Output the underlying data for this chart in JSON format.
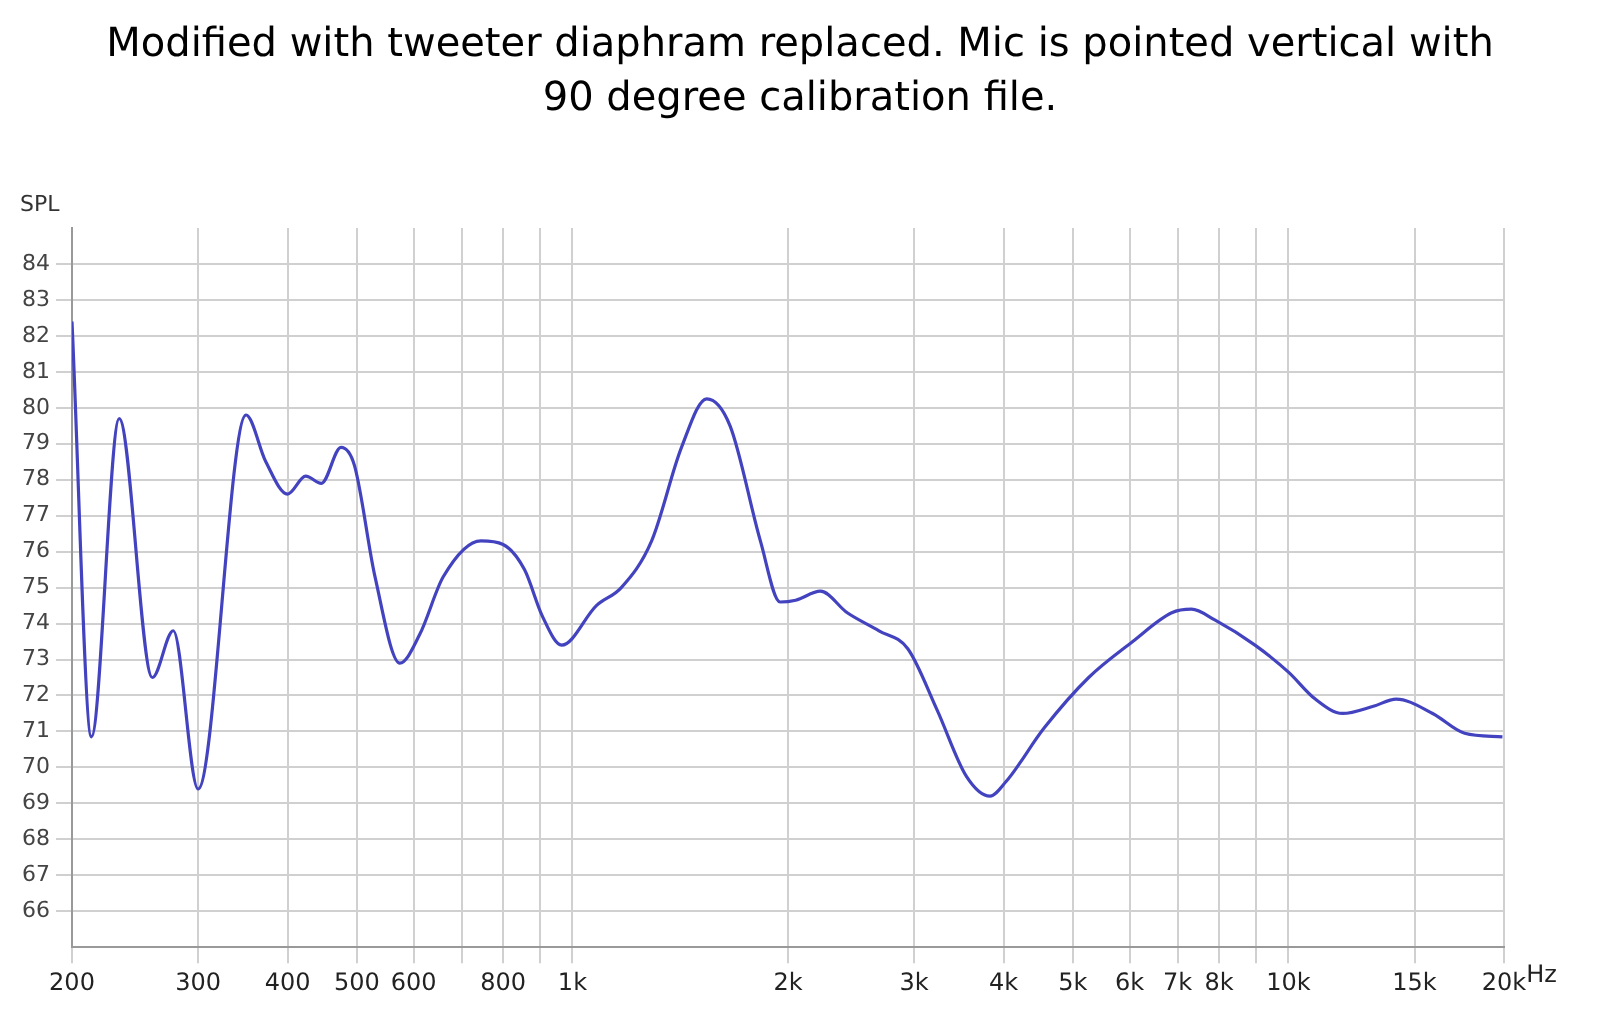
{
  "chart_data": {
    "type": "line",
    "title": "Modified with tweeter diaphram replaced. Mic is pointed vertical with 90 degree calibration file.",
    "ylabel": "SPL",
    "x": [
      200,
      212.9,
      232.8,
      259,
      277,
      300,
      350,
      373,
      400,
      424,
      446,
      475,
      496,
      530,
      574,
      612,
      660,
      745,
      800,
      857,
      908,
      966,
      1080,
      1170,
      1290,
      1420,
      1540,
      1660,
      1830,
      1950,
      2050,
      2220,
      2420,
      2680,
      2940,
      3230,
      3550,
      3830,
      4030,
      4560,
      5260,
      6060,
      6870,
      7320,
      7890,
      8980,
      10000,
      10900,
      11900,
      13140,
      14140,
      15900,
      17620,
      19900
    ],
    "series": [
      {
        "color": "#4343c0",
        "values": [
          82.4,
          70.85,
          79.7,
          72.5,
          73.8,
          69.4,
          79.8,
          78.5,
          77.6,
          78.1,
          77.9,
          78.9,
          78.4,
          75.3,
          72.9,
          73.7,
          75.3,
          76.3,
          76.2,
          75.5,
          74.2,
          73.4,
          74.5,
          75.0,
          76.3,
          78.9,
          80.25,
          79.5,
          76.3,
          74.6,
          74.65,
          74.9,
          74.3,
          73.8,
          73.3,
          71.6,
          69.75,
          69.2,
          69.6,
          71.1,
          72.5,
          73.5,
          74.3,
          74.4,
          74.1,
          73.4,
          72.65,
          71.9,
          71.5,
          71.7,
          71.9,
          71.5,
          70.95,
          70.85
        ]
      }
    ],
    "log": "x",
    "xlim": [
      200,
      20000
    ],
    "ylim": [
      65,
      85
    ],
    "xticks": [
      200,
      300,
      400,
      500,
      600,
      {
        "value": 700,
        "label": null
      },
      800,
      {
        "value": 900,
        "label": null
      },
      {
        "value": 1000,
        "label": "1k"
      },
      {
        "value": 2000,
        "label": "2k"
      },
      {
        "value": 3000,
        "label": "3k"
      },
      {
        "value": 4000,
        "label": "4k"
      },
      {
        "value": 5000,
        "label": "5k"
      },
      {
        "value": 6000,
        "label": "6k"
      },
      {
        "value": 7000,
        "label": "7k"
      },
      {
        "value": 8000,
        "label": "8k"
      },
      {
        "value": 9000,
        "label": null
      },
      {
        "value": 10000,
        "label": "10k"
      },
      {
        "value": 15000,
        "label": "15k"
      },
      {
        "value": 20000,
        "label": "20k"
      }
    ],
    "xlabel": "Hz",
    "yticks": [
      66,
      67,
      68,
      69,
      70,
      71,
      72,
      73,
      74,
      75,
      76,
      77,
      78,
      79,
      80,
      81,
      82,
      83,
      84
    ],
    "grid": true,
    "legend": false,
    "marker": "none",
    "line_style": "solid"
  }
}
